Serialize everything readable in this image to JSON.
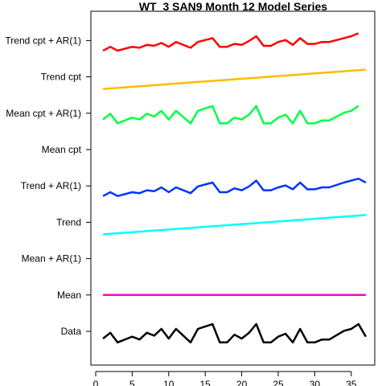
{
  "chart_data": {
    "type": "line",
    "title": "WT_3 SAN9 Month 12 Model Series",
    "xlabel": "",
    "ylabel": "",
    "xlim": [
      0,
      38
    ],
    "x_ticks": [
      0,
      5,
      10,
      15,
      20,
      25,
      30,
      35
    ],
    "grid": false,
    "legend": "none",
    "rows": [
      {
        "label": "Data",
        "color": "#000000",
        "type": "series",
        "x": [
          1,
          2,
          3,
          5,
          6,
          7,
          8,
          9,
          10,
          11,
          13,
          14,
          16,
          17,
          18,
          19,
          20,
          21,
          22,
          23,
          24,
          25,
          26,
          27,
          28,
          29,
          30,
          31,
          32,
          34,
          35,
          36,
          37
        ],
        "y": [
          0.25,
          0.55,
          0.05,
          0.35,
          0.2,
          0.55,
          0.4,
          0.75,
          0.25,
          0.75,
          0.05,
          0.75,
          1.0,
          0.05,
          0.05,
          0.45,
          0.25,
          0.55,
          1.0,
          0.05,
          0.05,
          0.35,
          0.5,
          0.05,
          0.75,
          0.05,
          0.05,
          0.2,
          0.2,
          0.65,
          0.75,
          1.0,
          0.35
        ]
      },
      {
        "label": "Mean",
        "color": "#ff00cc",
        "type": "flat",
        "x": [
          1,
          37
        ],
        "level": 0.5
      },
      {
        "label": "Mean + AR(1)",
        "color": "#000000",
        "type": "empty"
      },
      {
        "label": "Trend",
        "color": "#00ffff",
        "type": "series",
        "x": [
          1,
          37
        ],
        "y": [
          0.0,
          1.0
        ]
      },
      {
        "label": "Trend + AR(1)",
        "color": "#0033ff",
        "type": "series",
        "x": [
          1,
          2,
          3,
          5,
          6,
          7,
          8,
          9,
          10,
          11,
          13,
          14,
          16,
          17,
          18,
          19,
          20,
          21,
          22,
          23,
          24,
          25,
          26,
          27,
          28,
          29,
          30,
          31,
          32,
          34,
          35,
          36,
          37
        ],
        "y": [
          0.1,
          0.3,
          0.1,
          0.3,
          0.25,
          0.4,
          0.35,
          0.55,
          0.3,
          0.55,
          0.25,
          0.6,
          0.8,
          0.3,
          0.3,
          0.5,
          0.4,
          0.6,
          0.9,
          0.4,
          0.4,
          0.55,
          0.65,
          0.45,
          0.8,
          0.45,
          0.45,
          0.55,
          0.55,
          0.8,
          0.9,
          1.0,
          0.8
        ]
      },
      {
        "label": "Mean cpt",
        "color": "#000000",
        "type": "empty"
      },
      {
        "label": "Mean cpt + AR(1)",
        "color": "#00ff44",
        "type": "series",
        "x": [
          1,
          2,
          3,
          5,
          6,
          7,
          8,
          9,
          10,
          11,
          13,
          14,
          16,
          17,
          18,
          19,
          20,
          21,
          22,
          23,
          24,
          25,
          26,
          27,
          28,
          29,
          30,
          31,
          32,
          34,
          35,
          36
        ],
        "y": [
          0.3,
          0.6,
          0.1,
          0.4,
          0.3,
          0.6,
          0.45,
          0.75,
          0.3,
          0.75,
          0.1,
          0.75,
          1.0,
          0.1,
          0.1,
          0.4,
          0.3,
          0.55,
          1.0,
          0.1,
          0.1,
          0.4,
          0.55,
          0.1,
          0.75,
          0.1,
          0.1,
          0.25,
          0.25,
          0.65,
          0.75,
          1.0
        ]
      },
      {
        "label": "Trend cpt",
        "color": "#ffbb00",
        "type": "series",
        "x": [
          1,
          37
        ],
        "y": [
          0.0,
          1.0
        ]
      },
      {
        "label": "Trend cpt + AR(1)",
        "color": "#ff0000",
        "type": "series",
        "x": [
          1,
          2,
          3,
          5,
          6,
          7,
          8,
          9,
          10,
          11,
          13,
          14,
          16,
          17,
          18,
          19,
          20,
          21,
          22,
          23,
          24,
          25,
          26,
          27,
          28,
          29,
          30,
          31,
          32,
          34,
          35,
          36
        ],
        "y": [
          0.1,
          0.3,
          0.1,
          0.3,
          0.25,
          0.4,
          0.35,
          0.5,
          0.3,
          0.55,
          0.25,
          0.55,
          0.75,
          0.3,
          0.3,
          0.45,
          0.4,
          0.6,
          0.85,
          0.35,
          0.35,
          0.55,
          0.65,
          0.4,
          0.75,
          0.45,
          0.45,
          0.55,
          0.55,
          0.75,
          0.85,
          1.0
        ]
      }
    ]
  }
}
